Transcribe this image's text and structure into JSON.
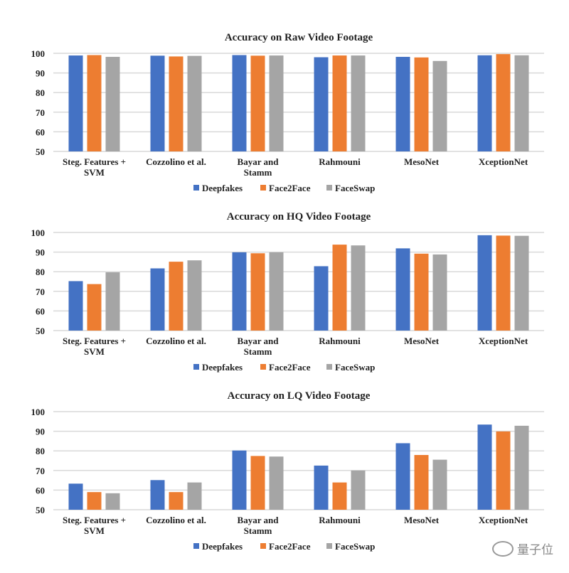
{
  "colors": {
    "Deepfakes": "#4472C4",
    "Face2Face": "#ED7D31",
    "FaceSwap": "#A5A5A5",
    "grid": "#D9D9D9"
  },
  "watermark": {
    "text": "量子位",
    "icon": "wechat-icon"
  },
  "chart_data": [
    {
      "type": "bar",
      "title": "Accuracy on Raw Video Footage",
      "categories": [
        [
          "Steg. Features +",
          "SVM"
        ],
        [
          "Cozzolino et al."
        ],
        [
          "Bayar and",
          "Stamm"
        ],
        [
          "Rahmouni"
        ],
        [
          "MesoNet"
        ],
        [
          "XceptionNet"
        ]
      ],
      "ylim": [
        50,
        100
      ],
      "yticks": [
        50,
        60,
        70,
        80,
        90,
        100
      ],
      "grid": true,
      "legend": "bottom",
      "series": [
        {
          "name": "Deepfakes",
          "values": [
            98.9,
            98.8,
            99.1,
            98.0,
            98.2,
            99.0
          ]
        },
        {
          "name": "Face2Face",
          "values": [
            99.1,
            98.4,
            98.8,
            98.9,
            97.9,
            99.6
          ]
        },
        {
          "name": "FaceSwap",
          "values": [
            98.2,
            98.7,
            98.9,
            98.9,
            96.1,
            99.0
          ]
        }
      ]
    },
    {
      "type": "bar",
      "title": "Accuracy on HQ Video Footage",
      "categories": [
        [
          "Steg. Features +",
          "SVM"
        ],
        [
          "Cozzolino et al."
        ],
        [
          "Bayar and",
          "Stamm"
        ],
        [
          "Rahmouni"
        ],
        [
          "MesoNet"
        ],
        [
          "XceptionNet"
        ]
      ],
      "ylim": [
        50,
        100
      ],
      "yticks": [
        50,
        60,
        70,
        80,
        90,
        100
      ],
      "grid": true,
      "legend": "bottom",
      "series": [
        {
          "name": "Deepfakes",
          "values": [
            75.2,
            81.7,
            89.9,
            82.8,
            91.9,
            98.6
          ]
        },
        {
          "name": "Face2Face",
          "values": [
            73.7,
            85.1,
            89.4,
            93.8,
            89.2,
            98.4
          ]
        },
        {
          "name": "FaceSwap",
          "values": [
            79.7,
            85.8,
            89.9,
            93.4,
            88.8,
            98.3
          ]
        }
      ]
    },
    {
      "type": "bar",
      "title": "Accuracy on LQ Video Footage",
      "categories": [
        [
          "Steg. Features +",
          "SVM"
        ],
        [
          "Cozzolino et al."
        ],
        [
          "Bayar and",
          "Stamm"
        ],
        [
          "Rahmouni"
        ],
        [
          "MesoNet"
        ],
        [
          "XceptionNet"
        ]
      ],
      "ylim": [
        50,
        100
      ],
      "yticks": [
        50,
        60,
        70,
        80,
        90,
        100
      ],
      "grid": true,
      "legend": "bottom",
      "series": [
        {
          "name": "Deepfakes",
          "values": [
            63.3,
            65.1,
            80.2,
            72.5,
            83.9,
            93.4
          ]
        },
        {
          "name": "Face2Face",
          "values": [
            59.0,
            59.0,
            77.4,
            63.9,
            77.9,
            89.9
          ]
        },
        {
          "name": "FaceSwap",
          "values": [
            58.4,
            63.9,
            77.1,
            70.0,
            75.5,
            92.8
          ]
        }
      ]
    }
  ]
}
